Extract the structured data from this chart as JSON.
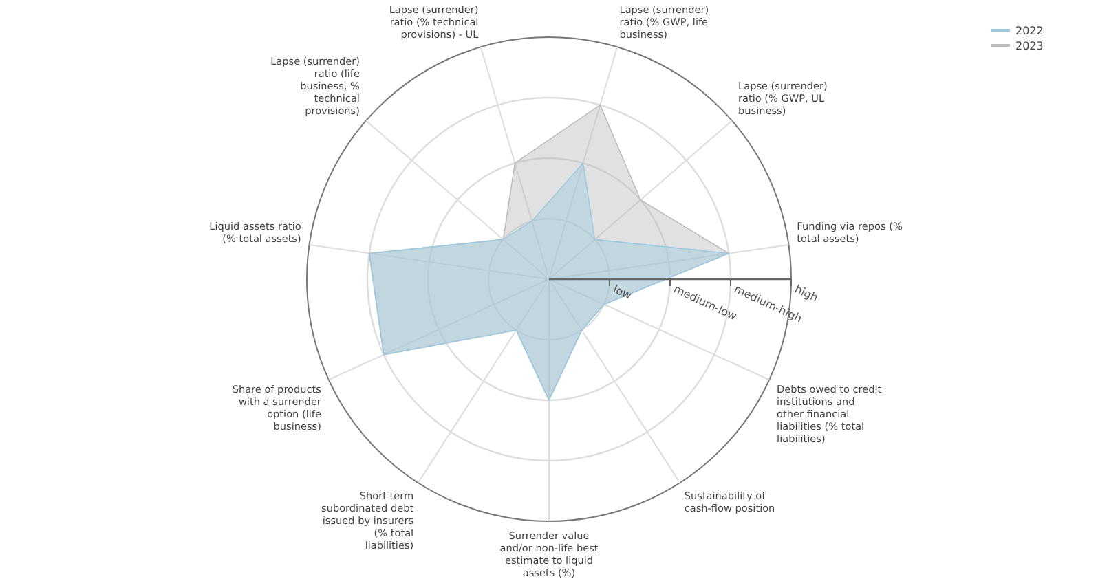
{
  "chart_data": {
    "type": "radar",
    "categories": [
      "Lapse (surrender) ratio (% GWP, life business)",
      "Lapse (surrender) ratio (% GWP, UL business)",
      "Funding via repos (% total assets)",
      "Debts owed to credit institutions and other financial liabilities (% total liabilities)",
      "Sustainability of cash-flow position",
      "Surrender value and/or non-life best estimate to liquid assets (%)",
      "Short term subordinated debt issued by insurers (% total liabilities)",
      "Share of products with a surrender option (life business)",
      "Liquid assets ratio (% total assets)",
      "Lapse (surrender) ratio (life business, % technical provisions)",
      "Lapse (surrender) ratio (% technical provisions) - UL"
    ],
    "series": [
      {
        "name": "2022",
        "color": "#9ecae1",
        "values": [
          2,
          1,
          3,
          1,
          1,
          2,
          1,
          3,
          3,
          1,
          1
        ]
      },
      {
        "name": "2023",
        "color": "#bdbdbd",
        "values": [
          3,
          2,
          3,
          1,
          1,
          2,
          1,
          3,
          3,
          1,
          2
        ]
      }
    ],
    "ylim": [
      0,
      4
    ],
    "yticks": [
      {
        "value": 1,
        "label": "low"
      },
      {
        "value": 2,
        "label": "medium-low"
      },
      {
        "value": 3,
        "label": "medium-high"
      },
      {
        "value": 4,
        "label": "high"
      }
    ],
    "grid": true,
    "legend": "top right"
  }
}
